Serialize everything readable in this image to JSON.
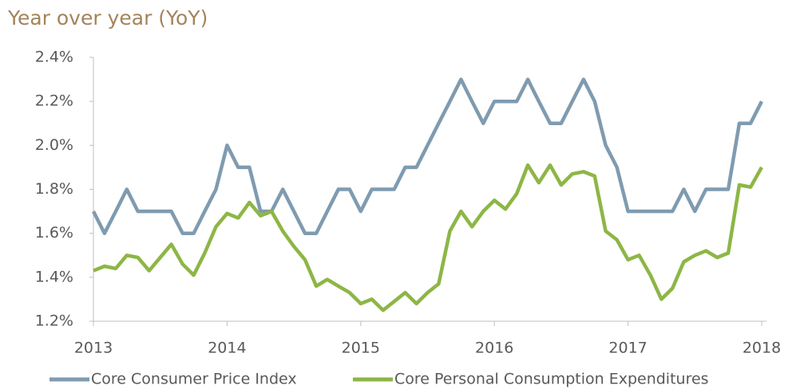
{
  "chart_data": {
    "type": "line",
    "title": "Year over year (YoY)",
    "x": [
      2013,
      2013.083,
      2013.167,
      2013.25,
      2013.333,
      2013.417,
      2013.5,
      2013.583,
      2013.667,
      2013.75,
      2013.833,
      2013.917,
      2014,
      2014.083,
      2014.167,
      2014.25,
      2014.333,
      2014.417,
      2014.5,
      2014.583,
      2014.667,
      2014.75,
      2014.833,
      2014.917,
      2015,
      2015.083,
      2015.167,
      2015.25,
      2015.333,
      2015.417,
      2015.5,
      2015.583,
      2015.667,
      2015.75,
      2015.833,
      2015.917,
      2016,
      2016.083,
      2016.167,
      2016.25,
      2016.333,
      2016.417,
      2016.5,
      2016.583,
      2016.667,
      2016.75,
      2016.833,
      2016.917,
      2017,
      2017.083,
      2017.167,
      2017.25,
      2017.333,
      2017.417,
      2017.5,
      2017.583,
      2017.667,
      2017.75,
      2017.833,
      2017.917,
      2018
    ],
    "series": [
      {
        "name": "Core Consumer Price Index",
        "color": "#7f9bb0",
        "values": [
          1.7,
          1.6,
          1.7,
          1.8,
          1.7,
          1.7,
          1.7,
          1.7,
          1.6,
          1.6,
          1.7,
          1.8,
          2.0,
          1.9,
          1.9,
          1.7,
          1.7,
          1.8,
          1.7,
          1.6,
          1.6,
          1.7,
          1.8,
          1.8,
          1.7,
          1.8,
          1.8,
          1.8,
          1.9,
          1.9,
          2.0,
          2.1,
          2.2,
          2.3,
          2.2,
          2.1,
          2.2,
          2.2,
          2.2,
          2.3,
          2.2,
          2.1,
          2.1,
          2.2,
          2.3,
          2.2,
          2.0,
          1.9,
          1.7,
          1.7,
          1.7,
          1.7,
          1.7,
          1.8,
          1.7,
          1.8,
          1.8,
          1.8,
          2.1,
          2.1,
          2.2
        ]
      },
      {
        "name": "Core Personal Consumption Expenditures",
        "color": "#8db646",
        "values": [
          1.43,
          1.45,
          1.44,
          1.5,
          1.49,
          1.43,
          1.49,
          1.55,
          1.46,
          1.41,
          1.51,
          1.63,
          1.69,
          1.67,
          1.74,
          1.68,
          1.7,
          1.61,
          1.54,
          1.48,
          1.36,
          1.39,
          1.36,
          1.33,
          1.28,
          1.3,
          1.25,
          1.29,
          1.33,
          1.28,
          1.33,
          1.37,
          1.61,
          1.7,
          1.63,
          1.7,
          1.75,
          1.71,
          1.78,
          1.91,
          1.83,
          1.91,
          1.82,
          1.87,
          1.88,
          1.86,
          1.61,
          1.57,
          1.48,
          1.5,
          1.41,
          1.3,
          1.35,
          1.47,
          1.5,
          1.52,
          1.49,
          1.51,
          1.82,
          1.81,
          1.9
        ]
      }
    ],
    "xlim": [
      2013,
      2018
    ],
    "xticks": [
      2013,
      2014,
      2015,
      2016,
      2017,
      2018
    ],
    "ylim": [
      1.2,
      2.4
    ],
    "yticks": [
      {
        "value": 1.2,
        "label": "1.2%"
      },
      {
        "value": 1.4,
        "label": "1.4%"
      },
      {
        "value": 1.6,
        "label": "1.6%"
      },
      {
        "value": 1.8,
        "label": "1.8%"
      },
      {
        "value": 2.0,
        "label": "2.0%"
      },
      {
        "value": 2.2,
        "label": "2.2%"
      },
      {
        "value": 2.4,
        "label": "2.4%"
      }
    ],
    "grid": false,
    "legend": "bottom"
  }
}
